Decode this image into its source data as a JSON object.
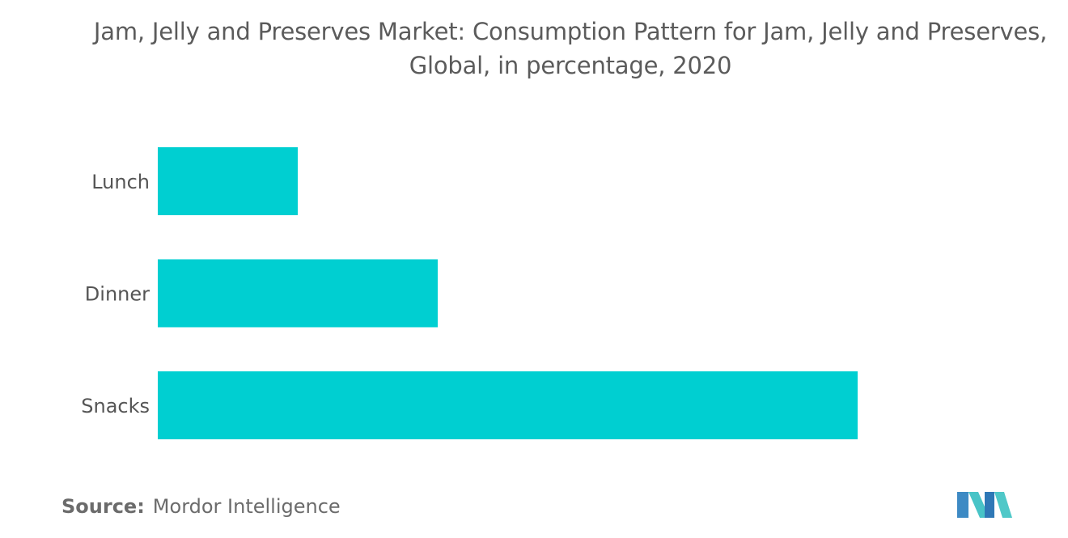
{
  "chart_data": {
    "type": "bar",
    "orientation": "horizontal",
    "title": "Jam, Jelly and Preserves Market: Consumption Pattern for Jam, Jelly and Preserves, Global, in percentage, 2020",
    "title_lines": [
      "Jam, Jelly and Preserves Market: Consumption Pattern for Jam, Jelly and Preserves,",
      "Global, in percentage, 2020"
    ],
    "categories": [
      "Lunch",
      "Dinner",
      "Snacks"
    ],
    "values": [
      20,
      40,
      100
    ],
    "xlim": [
      0,
      100
    ],
    "grid": false,
    "legend": "none",
    "bar_color": "#00cfd1"
  },
  "source": {
    "label": "Source:",
    "text": "Mordor Intelligence"
  },
  "logo": {
    "icon": "mordor-intelligence-logo-icon",
    "colors": [
      "#4a90c8",
      "#3ec3c8",
      "#2a6fb0"
    ]
  }
}
